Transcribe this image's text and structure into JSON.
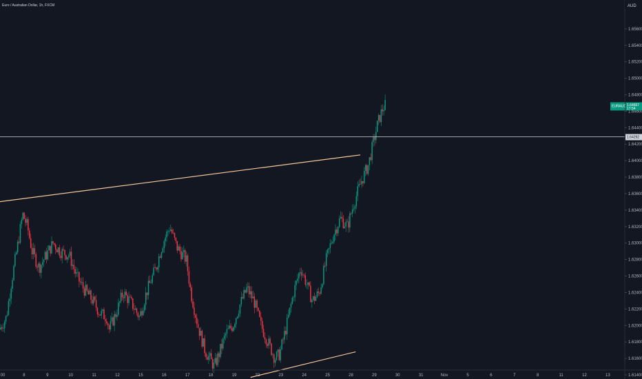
{
  "chart_data": {
    "type": "candlestick",
    "title": "Euro / Australian Dollar, 1h, FXCM",
    "currency": "AUD",
    "ylim": [
      1.6135,
      1.6595
    ],
    "y_ticks": [
      "1.65600",
      "1.65400",
      "1.65200",
      "1.65000",
      "1.64800",
      "1.64600",
      "1.64400",
      "1.64200",
      "1.64000",
      "1.63800",
      "1.63600",
      "1.63400",
      "1.63200",
      "1.63000",
      "1.62800",
      "1.62600",
      "1.62400",
      "1.62200",
      "1.62000",
      "1.61800",
      "1.61600",
      "1.61400"
    ],
    "y_tick_values": [
      1.656,
      1.654,
      1.652,
      1.65,
      1.648,
      1.646,
      1.644,
      1.642,
      1.64,
      1.638,
      1.636,
      1.634,
      1.632,
      1.63,
      1.628,
      1.626,
      1.624,
      1.622,
      1.62,
      1.618,
      1.616,
      1.614
    ],
    "x_ticks": [
      "00",
      "8",
      "9",
      "10",
      "11",
      "12",
      "15",
      "16",
      "17",
      "18",
      "19",
      "22",
      "23",
      "24",
      "25",
      "28",
      "29",
      "30",
      "31",
      "Nov",
      "5",
      "6",
      "7",
      "8",
      "11",
      "12",
      "13"
    ],
    "x_tick_values": [
      0,
      1,
      2,
      3,
      4,
      5,
      6,
      7,
      8,
      9,
      10,
      11,
      12,
      13,
      14,
      15,
      16,
      17,
      18,
      19,
      20,
      21,
      22,
      23,
      24,
      25,
      26
    ],
    "up_color": "#089981",
    "down_color": "#f23645",
    "price_levels": [
      {
        "name": "horizontal-level",
        "value": 1.6429,
        "label": "1.64292",
        "color": "#d1d4dc"
      }
    ],
    "trendlines": [
      {
        "name": "upper-trendline",
        "color": "#f7c99b",
        "from": {
          "x": -0.1,
          "y": 1.635
        },
        "to": {
          "x": 15.4,
          "y": 1.6407
        }
      },
      {
        "name": "lower-trendline",
        "color": "#f7c99b",
        "from": {
          "x": 10.7,
          "y": 1.6137
        },
        "to": {
          "x": 15.2,
          "y": 1.6168
        }
      }
    ],
    "last_price": {
      "symbol": "EURAUD",
      "price": "1.64667",
      "countdown": "17:54",
      "value": 1.64667,
      "color": "#089981"
    },
    "path": [
      [
        0.0,
        1.6195
      ],
      [
        0.3,
        1.621
      ],
      [
        0.5,
        1.625
      ],
      [
        0.8,
        1.63
      ],
      [
        1.0,
        1.6335
      ],
      [
        1.2,
        1.632
      ],
      [
        1.4,
        1.629
      ],
      [
        1.7,
        1.627
      ],
      [
        2.0,
        1.6285
      ],
      [
        2.3,
        1.63
      ],
      [
        2.6,
        1.629
      ],
      [
        3.0,
        1.6285
      ],
      [
        3.3,
        1.626
      ],
      [
        3.6,
        1.6245
      ],
      [
        4.0,
        1.623
      ],
      [
        4.3,
        1.6215
      ],
      [
        4.6,
        1.621
      ],
      [
        4.7,
        1.6195
      ],
      [
        5.0,
        1.6215
      ],
      [
        5.3,
        1.624
      ],
      [
        5.7,
        1.6225
      ],
      [
        6.0,
        1.621
      ],
      [
        6.3,
        1.624
      ],
      [
        6.7,
        1.627
      ],
      [
        7.0,
        1.63
      ],
      [
        7.3,
        1.632
      ],
      [
        7.6,
        1.6295
      ],
      [
        8.0,
        1.628
      ],
      [
        8.2,
        1.624
      ],
      [
        8.5,
        1.62
      ],
      [
        8.8,
        1.617
      ],
      [
        9.0,
        1.616
      ],
      [
        9.2,
        1.615
      ],
      [
        9.4,
        1.6165
      ],
      [
        9.7,
        1.619
      ],
      [
        10.0,
        1.62
      ],
      [
        10.3,
        1.6225
      ],
      [
        10.6,
        1.6245
      ],
      [
        10.9,
        1.623
      ],
      [
        11.2,
        1.62
      ],
      [
        11.5,
        1.618
      ],
      [
        11.8,
        1.616
      ],
      [
        12.0,
        1.6165
      ],
      [
        12.3,
        1.62
      ],
      [
        12.6,
        1.624
      ],
      [
        12.9,
        1.627
      ],
      [
        13.1,
        1.6255
      ],
      [
        13.4,
        1.623
      ],
      [
        13.7,
        1.624
      ],
      [
        14.0,
        1.628
      ],
      [
        14.3,
        1.631
      ],
      [
        14.6,
        1.633
      ],
      [
        14.9,
        1.632
      ],
      [
        15.2,
        1.635
      ],
      [
        15.5,
        1.6375
      ],
      [
        15.8,
        1.6395
      ],
      [
        16.0,
        1.642
      ],
      [
        16.2,
        1.6445
      ],
      [
        16.4,
        1.6462
      ],
      [
        16.5,
        1.6467
      ]
    ]
  }
}
